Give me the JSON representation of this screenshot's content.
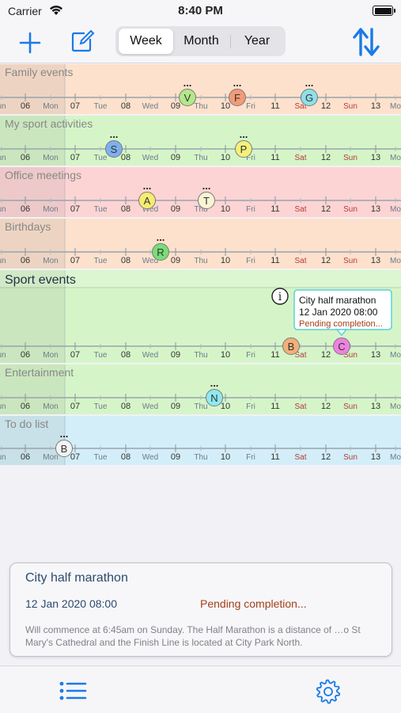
{
  "status_bar": {
    "carrier": "Carrier",
    "time": "8:40 PM",
    "wifi_icon": "wifi-icon",
    "battery_icon": "battery-icon"
  },
  "toolbar": {
    "add_icon": "plus-icon",
    "edit_icon": "compose-icon",
    "sort_icon": "sort-arrows-icon",
    "segments": [
      {
        "label": "Week",
        "selected": true
      },
      {
        "label": "Month",
        "selected": false
      },
      {
        "label": "Year",
        "selected": false
      }
    ]
  },
  "timeline": {
    "axis_ticks": [
      {
        "label": "un",
        "type": "day"
      },
      {
        "label": "06",
        "type": "date"
      },
      {
        "label": "Mon",
        "type": "day"
      },
      {
        "label": "07",
        "type": "date"
      },
      {
        "label": "Tue",
        "type": "day"
      },
      {
        "label": "08",
        "type": "date"
      },
      {
        "label": "Wed",
        "type": "day"
      },
      {
        "label": "09",
        "type": "date"
      },
      {
        "label": "Thu",
        "type": "day"
      },
      {
        "label": "10",
        "type": "date"
      },
      {
        "label": "Fri",
        "type": "day"
      },
      {
        "label": "11",
        "type": "date"
      },
      {
        "label": "Sat",
        "type": "day"
      },
      {
        "label": "12",
        "type": "date"
      },
      {
        "label": "Sun",
        "type": "day"
      },
      {
        "label": "13",
        "type": "date"
      },
      {
        "label": "Mo",
        "type": "day"
      }
    ],
    "rows": [
      {
        "title": "Family events",
        "color": "#fde1cc",
        "expanded": false,
        "events": [
          {
            "letter": "V",
            "color": "#b3e88a",
            "more": "..."
          },
          {
            "letter": "F",
            "color": "#f39a78",
            "more": "..."
          },
          {
            "letter": "G",
            "color": "#8fe0e8",
            "more": "..."
          }
        ]
      },
      {
        "title": "My sport activities",
        "color": "#d5f5c8",
        "expanded": false,
        "events": [
          {
            "letter": "S",
            "color": "#7eb0ee",
            "more": "..."
          },
          {
            "letter": "P",
            "color": "#f5f07a",
            "more": "..."
          }
        ]
      },
      {
        "title": "Office meetings",
        "color": "#fdd4d4",
        "expanded": false,
        "events": [
          {
            "letter": "A",
            "color": "#f5ec70",
            "more": "..."
          },
          {
            "letter": "T",
            "color": "#fbf3d5",
            "more": "..."
          }
        ]
      },
      {
        "title": "Birthdays",
        "color": "#fde1cc",
        "expanded": false,
        "events": [
          {
            "letter": "R",
            "color": "#78dd78",
            "more": "..."
          }
        ]
      },
      {
        "title": "Sport events",
        "color": "#d5f5c8",
        "expanded": true,
        "events": [
          {
            "letter": "B",
            "color": "#f2b07a",
            "more": ""
          },
          {
            "letter": "C",
            "color": "#ee82e0",
            "more": ""
          }
        ],
        "callout": {
          "title": "City half marathon",
          "date": "12 Jan 2020 08:00",
          "status": "Pending completion...",
          "info_icon": "info-icon"
        }
      },
      {
        "title": "Entertainment",
        "color": "#d5f5c8",
        "expanded": false,
        "events": [
          {
            "letter": "N",
            "color": "#8feaf0",
            "more": "..."
          }
        ]
      },
      {
        "title": "To do list",
        "color": "#d3eef8",
        "expanded": false,
        "events": [
          {
            "letter": "B",
            "color": "#f4f4f4",
            "more": "..."
          }
        ]
      }
    ]
  },
  "detail": {
    "title": "City half marathon",
    "date": "12 Jan 2020 08:00",
    "status": "Pending completion...",
    "description": "Will commence at 6:45am on Sunday. The Half Marathon is a distance of …o St Mary's Cathedral and the Finish Line is located at City Park North."
  },
  "tabbar": {
    "list_icon": "list-icon",
    "settings_icon": "gear-icon"
  }
}
